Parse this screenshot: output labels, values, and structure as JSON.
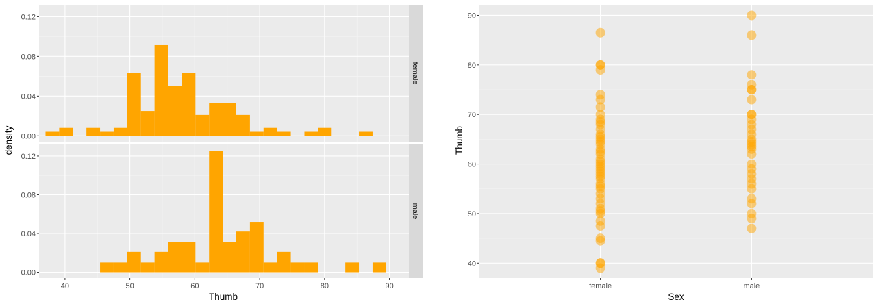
{
  "chart_data": [
    {
      "type": "bar",
      "subtype": "faceted-histogram",
      "title": "",
      "xlabel": "Thumb",
      "ylabel": "density",
      "xlim": [
        36,
        93
      ],
      "x_ticks": [
        40,
        50,
        60,
        70,
        80,
        90
      ],
      "y_ticks": [
        0.0,
        0.04,
        0.08,
        0.12
      ],
      "y_tick_labels": [
        "0.00",
        "0.04",
        "0.08",
        "0.12"
      ],
      "ylim": [
        -0.006,
        0.132
      ],
      "bin_width": 2.1,
      "grid": true,
      "bar_color": "#FFA500",
      "panel_background": "#EBEBEB",
      "strip_background": "#D9D9D9",
      "facets": [
        {
          "name": "female",
          "bins": [
            {
              "x": 38.05,
              "value": 0.004
            },
            {
              "x": 40.15,
              "value": 0.008
            },
            {
              "x": 44.35,
              "value": 0.008
            },
            {
              "x": 46.45,
              "value": 0.004
            },
            {
              "x": 48.55,
              "value": 0.008
            },
            {
              "x": 50.65,
              "value": 0.063
            },
            {
              "x": 52.75,
              "value": 0.025
            },
            {
              "x": 54.85,
              "value": 0.092
            },
            {
              "x": 56.95,
              "value": 0.05
            },
            {
              "x": 59.05,
              "value": 0.063
            },
            {
              "x": 61.15,
              "value": 0.021
            },
            {
              "x": 63.25,
              "value": 0.033
            },
            {
              "x": 65.35,
              "value": 0.033
            },
            {
              "x": 67.45,
              "value": 0.021
            },
            {
              "x": 69.55,
              "value": 0.004
            },
            {
              "x": 71.65,
              "value": 0.008
            },
            {
              "x": 73.75,
              "value": 0.004
            },
            {
              "x": 77.95,
              "value": 0.004
            },
            {
              "x": 80.05,
              "value": 0.008
            },
            {
              "x": 86.35,
              "value": 0.004
            }
          ]
        },
        {
          "name": "male",
          "bins": [
            {
              "x": 46.45,
              "value": 0.01
            },
            {
              "x": 48.55,
              "value": 0.01
            },
            {
              "x": 50.65,
              "value": 0.021
            },
            {
              "x": 52.75,
              "value": 0.01
            },
            {
              "x": 54.85,
              "value": 0.021
            },
            {
              "x": 56.95,
              "value": 0.031
            },
            {
              "x": 59.05,
              "value": 0.031
            },
            {
              "x": 61.15,
              "value": 0.01
            },
            {
              "x": 63.25,
              "value": 0.125
            },
            {
              "x": 65.35,
              "value": 0.031
            },
            {
              "x": 67.45,
              "value": 0.042
            },
            {
              "x": 69.55,
              "value": 0.052
            },
            {
              "x": 71.65,
              "value": 0.01
            },
            {
              "x": 73.75,
              "value": 0.021
            },
            {
              "x": 75.85,
              "value": 0.01
            },
            {
              "x": 77.95,
              "value": 0.01
            },
            {
              "x": 84.25,
              "value": 0.01
            },
            {
              "x": 88.45,
              "value": 0.01
            }
          ]
        }
      ]
    },
    {
      "type": "scatter",
      "subtype": "strip",
      "title": "",
      "xlabel": "Sex",
      "ylabel": "Thumb",
      "categories": [
        "female",
        "male"
      ],
      "ylim": [
        37,
        92
      ],
      "y_ticks": [
        40,
        50,
        60,
        70,
        80,
        90
      ],
      "grid": true,
      "point_color": "#FFA500",
      "point_alpha": 0.5,
      "panel_background": "#EBEBEB",
      "series": [
        {
          "name": "female",
          "values": [
            39,
            40,
            40,
            44.5,
            45,
            47.5,
            48.5,
            50,
            50.5,
            51,
            52,
            53,
            54,
            55,
            55.5,
            56,
            57,
            57.5,
            58,
            58.5,
            59,
            59.5,
            60,
            60.5,
            61,
            62,
            62.5,
            63,
            64,
            64.5,
            65,
            65.5,
            66,
            67,
            68,
            68.5,
            69,
            70,
            71.5,
            73,
            74,
            79,
            80,
            80,
            86.5
          ]
        },
        {
          "name": "male",
          "values": [
            47,
            49,
            50,
            52,
            53,
            55,
            56,
            57,
            58,
            59,
            60,
            62,
            63,
            63.5,
            64,
            64.5,
            65,
            66,
            67,
            68,
            69,
            70,
            70,
            73,
            75,
            75,
            76,
            78,
            86,
            90
          ]
        }
      ]
    }
  ]
}
